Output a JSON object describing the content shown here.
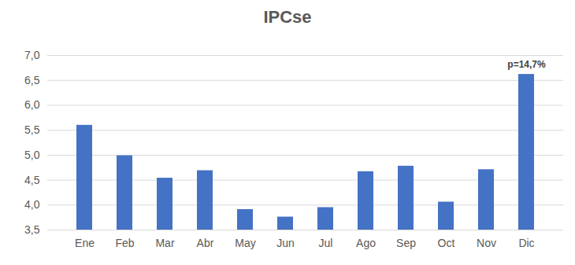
{
  "chart_data": {
    "type": "bar",
    "title": "IPCse",
    "categories": [
      "Ene",
      "Feb",
      "Mar",
      "Abr",
      "May",
      "Jun",
      "Jul",
      "Ago",
      "Sep",
      "Oct",
      "Nov",
      "Dic"
    ],
    "values": [
      5.6,
      4.99,
      4.54,
      4.69,
      3.91,
      3.76,
      3.95,
      4.67,
      4.78,
      4.06,
      4.71,
      6.62
    ],
    "color": "#4472c4",
    "ylim": [
      3.5,
      7.0
    ],
    "yticks": [
      {
        "value": 3.5,
        "label": "3,5"
      },
      {
        "value": 4.0,
        "label": "4,0"
      },
      {
        "value": 4.5,
        "label": "4,5"
      },
      {
        "value": 5.0,
        "label": "5,0"
      },
      {
        "value": 5.5,
        "label": "5,5"
      },
      {
        "value": 6.0,
        "label": "6,0"
      },
      {
        "value": 6.5,
        "label": "6,5"
      },
      {
        "value": 7.0,
        "label": "7,0"
      }
    ],
    "grid": true,
    "annotations": [
      {
        "text": "p=14,7%",
        "category": "Dic"
      }
    ]
  }
}
